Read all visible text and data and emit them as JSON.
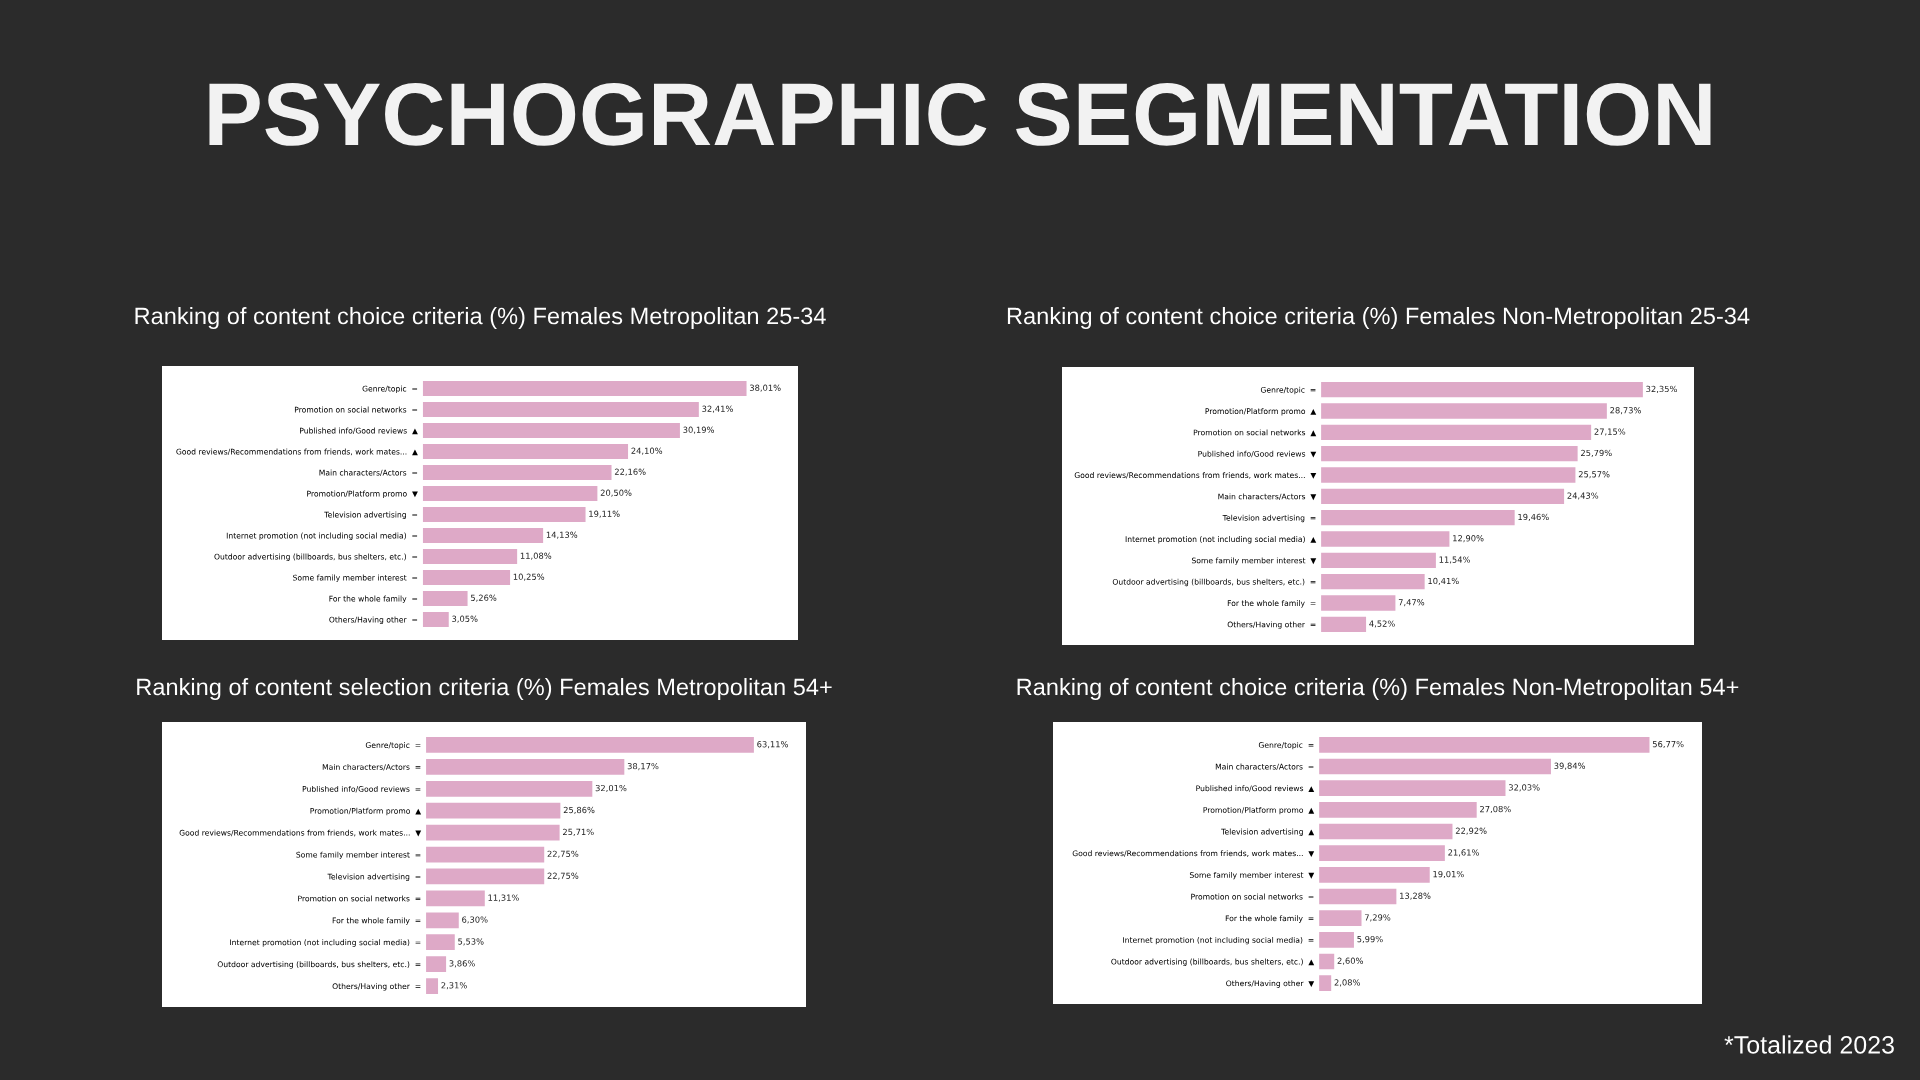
{
  "chart_data": [
    {
      "type": "bar",
      "orientation": "horizontal",
      "title": "Ranking of content choice criteria (%) Females Metropolitan 25-34",
      "color": "#dea9c7",
      "data_labels": false,
      "grid": false,
      "tick_labels": "y",
      "annotations": [
        "PSYCHOGRAPHIC SEGMENTATION"
      ],
      "categories": [
        "Genre/topic  =",
        "Promotion on social networks  =",
        "Published info/Good reviews  ▲",
        "Good reviews/Recommendations from friends, work mates...  ▲",
        "Main characters/Actors  =",
        "Promotion/Platform promo  ▼",
        "Television advertising  =",
        "Internet promotion (not including social media)  =",
        "Outdoor advertising (billboards, bus shelters, etc.)  =",
        "Some family member interest  =",
        "For the whole family  =",
        "Others/Having other  ="
      ],
      "values": [
        38.01,
        32.41,
        30.19,
        24.1,
        22.16,
        20.5,
        19.11,
        14.13,
        11.08,
        10.25,
        5.26,
        3.05
      ],
      "value_labels": [
        "38,01%",
        "32,41%",
        "30,19%",
        "24,10%",
        "22,16%",
        "20,50%",
        "19,11%",
        "14,13%",
        "11,08%",
        "10,25%",
        "5,26%",
        "3,05%"
      ]
    },
    {
      "type": "bar",
      "orientation": "horizontal",
      "title": "Ranking of content choice criteria (%) Females Non-Metropolitan 25-34",
      "color": "#dea9c7",
      "data_labels": false,
      "grid": false,
      "tick_labels": "y",
      "categories": [
        "Genre/topic  =",
        "Promotion/Platform promo  ▲",
        "Promotion on social networks  ▲",
        "Published info/Good reviews  ▼",
        "Good reviews/Recommendations from friends, work mates...  ▼",
        "Main characters/Actors  ▼",
        "Television advertising  =",
        "Internet promotion (not including social media)  ▲",
        "Some family member interest  ▼",
        "Outdoor advertising (billboards, bus shelters, etc.)  =",
        "For the whole family  =",
        "Others/Having other  ="
      ],
      "values": [
        32.35,
        28.73,
        27.15,
        25.79,
        25.57,
        24.43,
        19.46,
        12.9,
        11.54,
        10.41,
        7.47,
        4.52
      ],
      "value_labels": [
        "32,35%",
        "28,73%",
        "27,15%",
        "25,79%",
        "25,57%",
        "24,43%",
        "19,46%",
        "12,90%",
        "11,54%",
        "10,41%",
        "7,47%",
        "4,52%"
      ]
    },
    {
      "type": "bar",
      "orientation": "horizontal",
      "title": "Ranking of content selection criteria (%) Females Metropolitan 54+",
      "color": "#dea9c7",
      "data_labels": false,
      "grid": false,
      "tick_labels": "y",
      "categories": [
        "Genre/topic  =",
        "Main characters/Actors  =",
        "Published info/Good reviews  =",
        "Promotion/Platform promo  ▲",
        "Good reviews/Recommendations from friends, work mates...  ▼",
        "Some family member interest  =",
        "Television advertising  =",
        "Promotion on social networks  =",
        "For the whole family  =",
        "Internet promotion (not including social media)  =",
        "Outdoor advertising (billboards, bus shelters, etc.)  =",
        "Others/Having other  ="
      ],
      "values": [
        63.11,
        38.17,
        32.01,
        25.86,
        25.71,
        22.75,
        22.75,
        11.31,
        6.3,
        5.53,
        3.86,
        2.31
      ],
      "value_labels": [
        "63,11%",
        "38,17%",
        "32,01%",
        "25,86%",
        "25,71%",
        "22,75%",
        "22,75%",
        "11,31%",
        "6,30%",
        "5,53%",
        "3,86%",
        "2,31%"
      ]
    },
    {
      "type": "bar",
      "orientation": "horizontal",
      "title": "Ranking of content choice criteria (%) Females Non-Metropolitan 54+",
      "color": "#dea9c7",
      "data_labels": false,
      "grid": false,
      "tick_labels": "y",
      "annotations": [
        "*Totalized 2023"
      ],
      "categories": [
        "Genre/topic  =",
        "Main characters/Actors  =",
        "Published info/Good reviews  ▲",
        "Promotion/Platform promo  ▲",
        "Television advertising  ▲",
        "Good reviews/Recommendations from friends, work mates...  ▼",
        "Some family member interest  ▼",
        "Promotion on social networks  =",
        "For the whole family  =",
        "Internet promotion (not including social media)  =",
        "Outdoor advertising (billboards, bus shelters, etc.)  ▲",
        "Others/Having other  ▼"
      ],
      "values": [
        56.77,
        39.84,
        32.03,
        27.08,
        22.92,
        21.61,
        19.01,
        13.28,
        7.29,
        5.99,
        2.6,
        2.08
      ],
      "value_labels": [
        "56,77%",
        "39,84%",
        "32,03%",
        "27,08%",
        "22,92%",
        "21,61%",
        "19,01%",
        "13,28%",
        "7,29%",
        "5,99%",
        "2,60%",
        "2,08%"
      ]
    }
  ]
}
